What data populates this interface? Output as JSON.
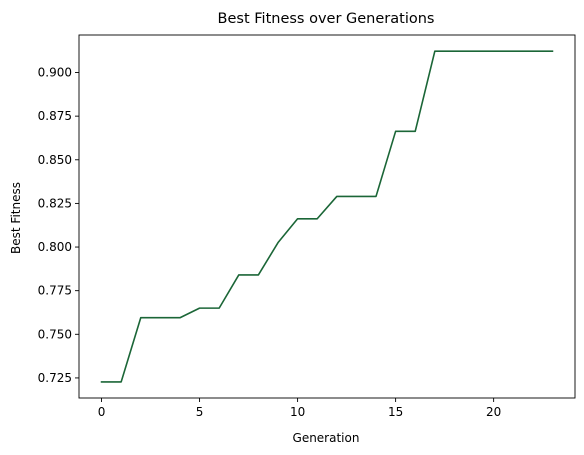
{
  "chart_data": {
    "type": "line",
    "title": "Best Fitness over Generations",
    "xlabel": "Generation",
    "ylabel": "Best Fitness",
    "xlim": [
      -1.15,
      24.15
    ],
    "ylim": [
      0.7135,
      0.9215
    ],
    "xticks": [
      0,
      5,
      10,
      15,
      20
    ],
    "xtick_labels": [
      "0",
      "5",
      "10",
      "15",
      "20"
    ],
    "yticks": [
      0.725,
      0.75,
      0.775,
      0.8,
      0.825,
      0.85,
      0.875,
      0.9
    ],
    "ytick_labels": [
      "0.725",
      "0.750",
      "0.775",
      "0.800",
      "0.825",
      "0.850",
      "0.875",
      "0.900"
    ],
    "grid": false,
    "series": [
      {
        "color": "#1b6637",
        "x": [
          0,
          1,
          2,
          3,
          4,
          5,
          6,
          7,
          8,
          9,
          10,
          11,
          12,
          13,
          14,
          15,
          16,
          17,
          18,
          19,
          20,
          21,
          22,
          23
        ],
        "y": [
          0.7227,
          0.7227,
          0.7595,
          0.7595,
          0.7595,
          0.765,
          0.765,
          0.784,
          0.784,
          0.8025,
          0.8162,
          0.8162,
          0.829,
          0.829,
          0.829,
          0.8663,
          0.8663,
          0.9122,
          0.9122,
          0.9122,
          0.9122,
          0.9122,
          0.9122,
          0.9122
        ]
      }
    ]
  }
}
